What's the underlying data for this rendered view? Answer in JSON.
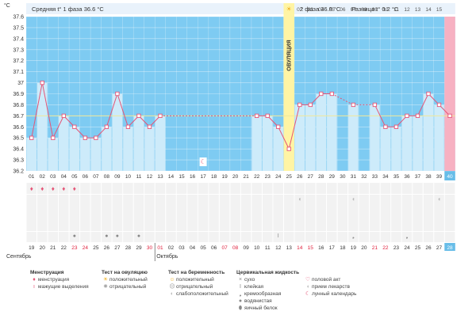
{
  "header": {
    "left_summary": "Средняя t° 1 фаза 36.6 °C",
    "right_summary": "2 фаза 36.8 °C",
    "difference": "Разница t° 0.2 °C"
  },
  "colors": {
    "phase1_bg": "#e9f2fb",
    "chart_bg": "#7ecbf2",
    "bar": "#cdebfa",
    "line": "#e55577",
    "point_fill": "#ffffff",
    "ovulation_band": "#fff4a4",
    "day_40_band": "#f7b1c2",
    "axis_highlight": "#68bde8",
    "reference_line": "#f1e89a",
    "red_day": "#e0203c"
  },
  "chart_data": {
    "type": "line",
    "title": "",
    "xlabel": "",
    "ylabel": "°C",
    "ylim": [
      36.2,
      37.6
    ],
    "y_ticks": [
      "36.2",
      "36.3",
      "36.4",
      "36.5",
      "36.6",
      "36.7",
      "36.8",
      "36.9",
      "37",
      "37.1",
      "37.2",
      "37.3",
      "37.4",
      "37.5",
      "37.6"
    ],
    "cycle_days": [
      "01",
      "02",
      "03",
      "04",
      "05",
      "06",
      "07",
      "08",
      "09",
      "10",
      "11",
      "12",
      "13",
      "14",
      "15",
      "16",
      "17",
      "18",
      "19",
      "20",
      "21",
      "22",
      "23",
      "24",
      "25",
      "26",
      "27",
      "28",
      "29",
      "30",
      "31",
      "32",
      "33",
      "34",
      "35",
      "36",
      "37",
      "38",
      "39",
      "40"
    ],
    "highlighted_cycle_day": "40",
    "temperatures": [
      36.5,
      37.0,
      36.5,
      36.7,
      36.6,
      36.5,
      36.5,
      36.6,
      36.9,
      36.6,
      36.7,
      36.6,
      36.7,
      null,
      null,
      null,
      null,
      null,
      null,
      null,
      null,
      36.7,
      36.7,
      36.6,
      36.4,
      36.8,
      36.8,
      36.9,
      36.9,
      null,
      36.8,
      null,
      36.8,
      36.6,
      36.6,
      36.7,
      36.7,
      36.9,
      36.8,
      36.7
    ],
    "reference_temperature": 36.7,
    "ovulation_day": "25",
    "ovulation_label": "ОВУЛЯЦИЯ",
    "phase2_header_days": [
      "02",
      "03",
      "04",
      "05",
      "06",
      "07",
      "08",
      "09",
      "10",
      "11",
      "12",
      "13",
      "14",
      "15"
    ],
    "calendar_dates": [
      "19",
      "20",
      "21",
      "22",
      "23",
      "24",
      "25",
      "26",
      "27",
      "28",
      "29",
      "30",
      "01",
      "02",
      "03",
      "04",
      "05",
      "06",
      "07",
      "08",
      "09",
      "10",
      "11",
      "12",
      "13",
      "14",
      "15",
      "16",
      "17",
      "18",
      "19",
      "20",
      "21",
      "22",
      "23",
      "24",
      "25",
      "26",
      "27",
      "28"
    ],
    "red_calendar_dates": [
      4,
      5,
      11,
      12,
      18,
      19,
      25,
      26,
      32,
      33,
      39
    ],
    "highlighted_calendar_date": "28",
    "months": [
      "Сентябрь",
      "Октябрь"
    ],
    "lunar_calendar_day": "17",
    "menstruation_days": [
      "01",
      "02",
      "03",
      "04",
      "05"
    ],
    "moon_days": [
      "26",
      "31",
      "39"
    ],
    "fluid_markers": [
      {
        "day": "05",
        "type": "водянистая"
      },
      {
        "day": "08",
        "type": "водянистая"
      },
      {
        "day": "09",
        "type": "водянистая"
      },
      {
        "day": "11",
        "type": "водянистая"
      },
      {
        "day": "24",
        "type": "клейкая"
      },
      {
        "day": "31",
        "type": "кремообразная"
      },
      {
        "day": "36",
        "type": "кремообразная"
      }
    ]
  },
  "legend": {
    "groups": [
      {
        "title": "Менструация",
        "items": [
          {
            "label": "менструация",
            "icon": "menstruation-icon",
            "glyph": "♦",
            "color": "#e55577"
          },
          {
            "label": "мажущие выделения",
            "icon": "spotting-icon",
            "glyph": "ı",
            "color": "#e55577"
          }
        ]
      },
      {
        "title": "Тест на овуляцию",
        "items": [
          {
            "label": "положительный",
            "icon": "sun-icon",
            "glyph": "☀",
            "color": "#f0b020"
          },
          {
            "label": "отрицательный",
            "icon": "gray-sun-icon",
            "glyph": "✹",
            "color": "#aaaaaa"
          }
        ]
      },
      {
        "title": "Тест на беременность",
        "items": [
          {
            "label": "положительный",
            "icon": "positive-test-icon",
            "glyph": "☺",
            "color": "#f0b020"
          },
          {
            "label": "отрицательный",
            "icon": "negative-test-icon",
            "glyph": "☹",
            "color": "#999999"
          },
          {
            "label": "слабоположительный",
            "icon": "weak-test-icon",
            "glyph": "◐",
            "color": "#bbbbbb"
          }
        ]
      },
      {
        "title": "Цервикальная жидкость",
        "items": [
          {
            "label": "сухо",
            "icon": "dry-icon",
            "glyph": "×",
            "color": "#888888"
          },
          {
            "label": "клейкая",
            "icon": "sticky-icon",
            "glyph": "Ӏ",
            "color": "#888888"
          },
          {
            "label": "кремообразная",
            "icon": "creamy-icon",
            "glyph": "❟",
            "color": "#888888"
          },
          {
            "label": "водянистая",
            "icon": "watery-icon",
            "glyph": "●",
            "color": "#888888"
          },
          {
            "label": "яичный белок",
            "icon": "egg-white-icon",
            "glyph": "⬮",
            "color": "#888888"
          }
        ]
      },
      {
        "title": "",
        "items": [
          {
            "label": "половой акт",
            "icon": "heart-icon",
            "glyph": "♡",
            "color": "#e55577"
          },
          {
            "label": "прием лекарств",
            "icon": "pill-icon",
            "glyph": "◖",
            "color": "#bbbbbb"
          },
          {
            "label": "лунный календарь",
            "icon": "moon-icon",
            "glyph": "☾",
            "color": "#e55577"
          }
        ]
      }
    ]
  }
}
